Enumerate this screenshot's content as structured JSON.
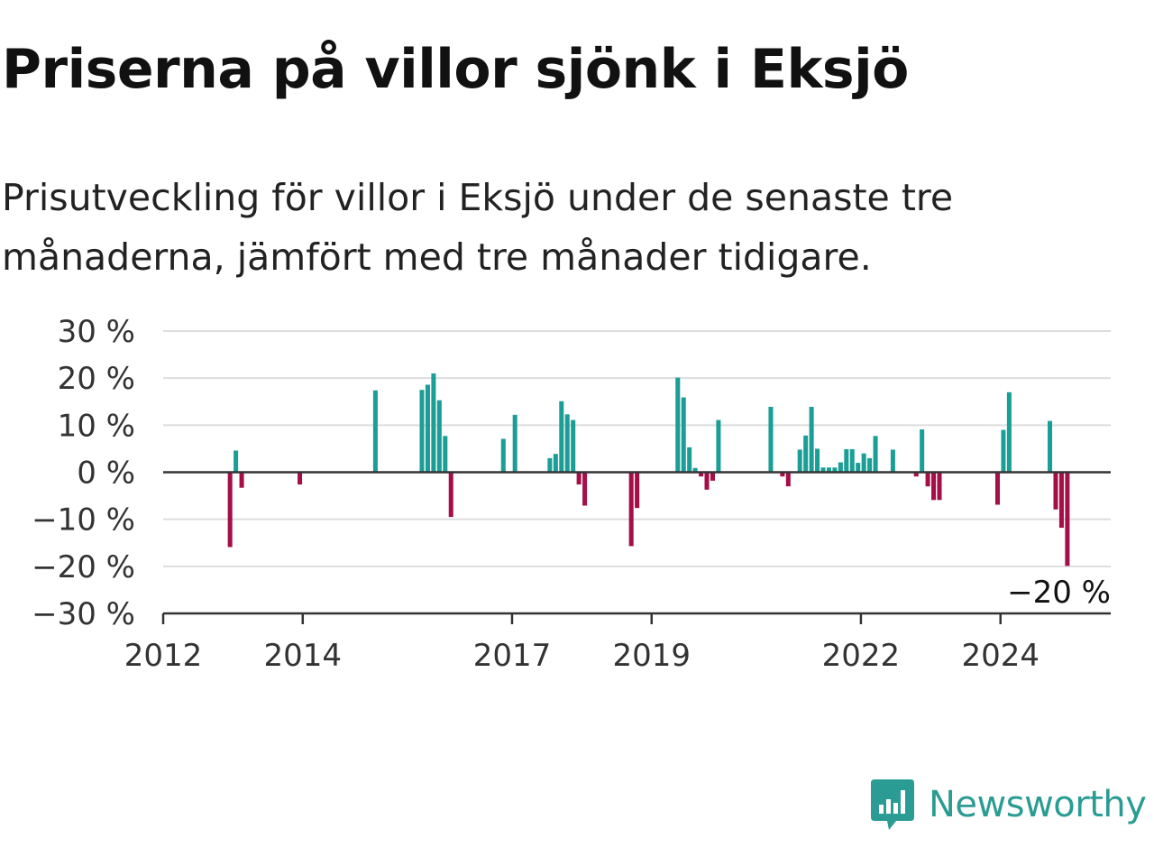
{
  "title": "Priserna på villor sjönk i Eksjö",
  "subtitle": "Prisutveckling för villor i Eksjö under de senaste tre månaderna, jämfört med tre månader tidigare.",
  "brand": {
    "name": "Newsworthy",
    "icon": "newsworthy-logo-icon",
    "color": "#2b9c93"
  },
  "chart_data": {
    "type": "bar",
    "x_unit": "month",
    "ylim": [
      -30,
      30
    ],
    "yticks": [
      30,
      20,
      10,
      0,
      -10,
      -20,
      -30
    ],
    "ytick_labels": [
      "30 %",
      "20 %",
      "10 %",
      "0 %",
      "−10 %",
      "−20 %",
      "−30 %"
    ],
    "xticks": [
      "2012",
      "2014",
      "2017",
      "2019",
      "2022",
      "2024"
    ],
    "grid": true,
    "positive_color": "#1a9e96",
    "negative_color": "#a50f47",
    "end_label": "−20 %",
    "series": [
      {
        "values": [
          [
            "2012-12",
            -15.9
          ],
          [
            "2013-01",
            4.6
          ],
          [
            "2013-02",
            -3.3
          ],
          [
            "2013-12",
            -2.6
          ],
          [
            "2015-01",
            17.4
          ],
          [
            "2015-09",
            17.5
          ],
          [
            "2015-10",
            18.6
          ],
          [
            "2015-11",
            21.0
          ],
          [
            "2015-12",
            15.3
          ],
          [
            "2016-01",
            7.7
          ],
          [
            "2016-02",
            -9.5
          ],
          [
            "2016-11",
            7.1
          ],
          [
            "2017-01",
            12.2
          ],
          [
            "2017-07",
            3.0
          ],
          [
            "2017-08",
            3.9
          ],
          [
            "2017-09",
            15.1
          ],
          [
            "2017-10",
            12.3
          ],
          [
            "2017-11",
            11.1
          ],
          [
            "2017-12",
            -2.6
          ],
          [
            "2018-01",
            -7.1
          ],
          [
            "2018-09",
            -15.7
          ],
          [
            "2018-10",
            -7.6
          ],
          [
            "2019-05",
            20.1
          ],
          [
            "2019-06",
            15.9
          ],
          [
            "2019-07",
            5.3
          ],
          [
            "2019-08",
            0.9
          ],
          [
            "2019-09",
            -0.9
          ],
          [
            "2019-10",
            -3.7
          ],
          [
            "2019-11",
            -1.8
          ],
          [
            "2019-12",
            11.1
          ],
          [
            "2020-09",
            13.9
          ],
          [
            "2020-11",
            -0.9
          ],
          [
            "2020-12",
            -3.0
          ],
          [
            "2021-02",
            4.8
          ],
          [
            "2021-03",
            7.8
          ],
          [
            "2021-04",
            13.9
          ],
          [
            "2021-05",
            5.0
          ],
          [
            "2021-06",
            1.0
          ],
          [
            "2021-07",
            1.0
          ],
          [
            "2021-08",
            1.0
          ],
          [
            "2021-09",
            2.1
          ],
          [
            "2021-10",
            4.9
          ],
          [
            "2021-11",
            4.9
          ],
          [
            "2021-12",
            2.0
          ],
          [
            "2022-01",
            4.0
          ],
          [
            "2022-02",
            3.0
          ],
          [
            "2022-03",
            7.7
          ],
          [
            "2022-06",
            4.8
          ],
          [
            "2022-10",
            -0.9
          ],
          [
            "2022-11",
            9.1
          ],
          [
            "2022-12",
            -3.0
          ],
          [
            "2023-01",
            -5.9
          ],
          [
            "2023-02",
            -5.9
          ],
          [
            "2023-12",
            -6.9
          ],
          [
            "2024-01",
            9.0
          ],
          [
            "2024-02",
            17.0
          ],
          [
            "2024-09",
            10.9
          ],
          [
            "2024-10",
            -7.9
          ],
          [
            "2024-11",
            -11.8
          ],
          [
            "2024-12",
            -19.9
          ]
        ]
      }
    ]
  }
}
